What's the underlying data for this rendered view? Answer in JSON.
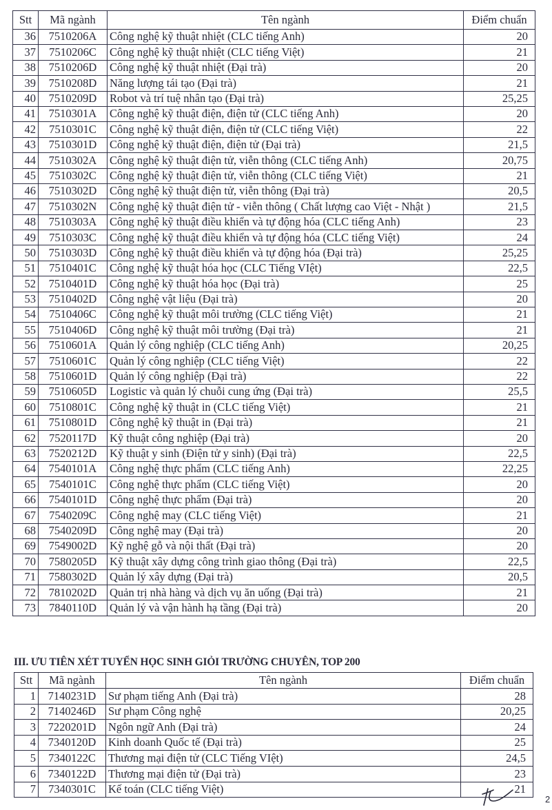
{
  "table1": {
    "headers": {
      "stt": "Stt",
      "code": "Mã ngành",
      "name": "Tên ngành",
      "score": "Điểm chuẩn"
    },
    "rows": [
      [
        "36",
        "7510206A",
        "Công nghệ kỹ thuật nhiệt (CLC tiếng Anh)",
        "20"
      ],
      [
        "37",
        "7510206C",
        "Công nghệ kỹ thuật nhiệt (CLC tiếng Việt)",
        "21"
      ],
      [
        "38",
        "7510206D",
        "Công nghệ kỹ thuật nhiệt (Đại trà)",
        "20"
      ],
      [
        "39",
        "7510208D",
        "Năng lượng tái tạo (Đại trà)",
        "21"
      ],
      [
        "40",
        "7510209D",
        "Robot và trí tuệ nhân tạo (Đại trà)",
        "25,25"
      ],
      [
        "41",
        "7510301A",
        "Công nghệ kỹ thuật điện, điện tử (CLC tiếng Anh)",
        "20"
      ],
      [
        "42",
        "7510301C",
        "Công nghệ kỹ thuật điện, điện tử (CLC tiếng Việt)",
        "22"
      ],
      [
        "43",
        "7510301D",
        "Công nghệ kỹ thuật điện, điện tử (Đại trà)",
        "21,5"
      ],
      [
        "44",
        "7510302A",
        "Công nghệ kỹ thuật điện tử, viễn thông (CLC tiếng Anh)",
        "20,75"
      ],
      [
        "45",
        "7510302C",
        "Công nghệ kỹ thuật điện tử, viễn thông (CLC tiếng Việt)",
        "21"
      ],
      [
        "46",
        "7510302D",
        "Công nghệ kỹ thuật điện tử, viễn thông (Đại trà)",
        "20,5"
      ],
      [
        "47",
        "7510302N",
        "Công nghệ kỹ thuật điện tử - viễn thông ( Chất lượng cao Việt - Nhật )",
        "21,5"
      ],
      [
        "48",
        "7510303A",
        "Công nghệ kỹ thuật điều khiển và tự động hóa (CLC tiếng Anh)",
        "23"
      ],
      [
        "49",
        "7510303C",
        "Công nghệ kỹ thuật điều khiển và tự động hóa (CLC tiếng Việt)",
        "24"
      ],
      [
        "50",
        "7510303D",
        "Công nghệ kỹ thuật điều khiển và tự động hóa (Đại trà)",
        "25,25"
      ],
      [
        "51",
        "7510401C",
        "Công nghệ kỹ thuật hóa học (CLC Tiếng VIệt)",
        "22,5"
      ],
      [
        "52",
        "7510401D",
        "Công nghệ kỹ thuật hóa học (Đại trà)",
        "25"
      ],
      [
        "53",
        "7510402D",
        "Công nghệ vật liệu (Đại trà)",
        "20"
      ],
      [
        "54",
        "7510406C",
        "Công nghệ kỹ thuật môi trường (CLC tiếng Việt)",
        "21"
      ],
      [
        "55",
        "7510406D",
        "Công nghệ kỹ thuật môi trường (Đại trà)",
        "21"
      ],
      [
        "56",
        "7510601A",
        "Quản lý công nghiệp (CLC tiếng Anh)",
        "20,25"
      ],
      [
        "57",
        "7510601C",
        "Quản lý công nghiệp (CLC tiếng Việt)",
        "22"
      ],
      [
        "58",
        "7510601D",
        "Quản lý công nghiệp (Đại trà)",
        "22"
      ],
      [
        "59",
        "7510605D",
        "Logistic và quản lý chuỗi cung ứng (Đại trà)",
        "25,5"
      ],
      [
        "60",
        "7510801C",
        "Công nghệ kỹ thuật in (CLC tiếng Việt)",
        "21"
      ],
      [
        "61",
        "7510801D",
        "Công nghệ kỹ thuật in (Đại trà)",
        "21"
      ],
      [
        "62",
        "7520117D",
        "Kỹ thuật công nghiệp (Đại trà)",
        "20"
      ],
      [
        "63",
        "7520212D",
        "Kỹ thuật y sinh (Điện tử y sinh) (Đại trà)",
        "22,5"
      ],
      [
        "64",
        "7540101A",
        "Công nghệ thực phẩm (CLC tiếng Anh)",
        "22,25"
      ],
      [
        "65",
        "7540101C",
        "Công nghệ thực phẩm (CLC tiếng Việt)",
        "20"
      ],
      [
        "66",
        "7540101D",
        "Công nghệ thực phẩm (Đại trà)",
        "20"
      ],
      [
        "67",
        "7540209C",
        "Công nghệ may (CLC tiếng Việt)",
        "21"
      ],
      [
        "68",
        "7540209D",
        "Công nghệ may (Đại trà)",
        "20"
      ],
      [
        "69",
        "7549002D",
        "Kỹ nghệ gỗ và nội thất (Đại trà)",
        "20"
      ],
      [
        "70",
        "7580205D",
        "Kỹ thuật xây dựng công trình giao thông (Đại trà)",
        "22,5"
      ],
      [
        "71",
        "7580302D",
        "Quản lý xây dựng (Đại trà)",
        "20,5"
      ],
      [
        "72",
        "7810202D",
        "Quản trị nhà hàng và dịch vụ ăn uống (Đại trà)",
        "21"
      ],
      [
        "73",
        "7840110D",
        "Quản lý và vận hành hạ tầng (Đại trà)",
        "20"
      ]
    ]
  },
  "section3": {
    "title": "III. ƯU TIÊN XÉT TUYỂN HỌC SINH GIỎI TRƯỜNG CHUYÊN, TOP 200",
    "headers": {
      "stt": "Stt",
      "code": "Mã ngành",
      "name": "Tên ngành",
      "score": "Điểm chuẩn"
    },
    "rows": [
      [
        "1",
        "7140231D",
        "Sư phạm tiếng Anh (Đại trà)",
        "28"
      ],
      [
        "2",
        "7140246D",
        "Sư phạm Công nghệ",
        "20,25"
      ],
      [
        "3",
        "7220201D",
        "Ngôn ngữ Anh (Đại trà)",
        "24"
      ],
      [
        "4",
        "7340120D",
        "Kinh doanh Quốc tế (Đại trà)",
        "25"
      ],
      [
        "5",
        "7340122C",
        "Thương mại điện tử (CLC Tiếng VIệt)",
        "24,5"
      ],
      [
        "6",
        "7340122D",
        "Thương mại điện tử (Đại trà)",
        "23"
      ],
      [
        "7",
        "7340301C",
        "Kế toán (CLC tiếng Việt)",
        "21"
      ]
    ]
  },
  "footer": {
    "page_number": "2",
    "signature_icon": "handwritten-initials"
  }
}
